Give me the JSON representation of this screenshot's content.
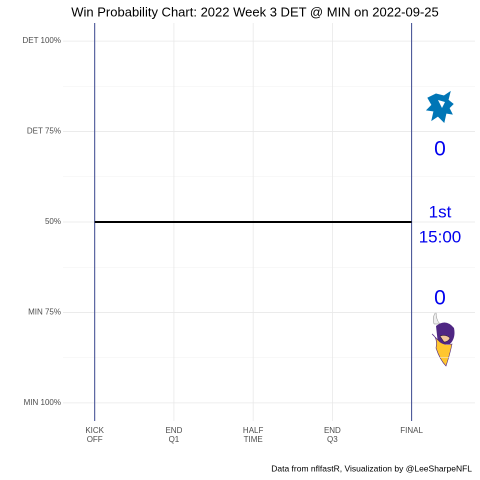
{
  "chart_data": {
    "type": "line",
    "title": "Win Probability Chart: 2022 Week 3 DET @ MIN on 2022-09-25",
    "caption": "Data from nflfastR, Visualization by @LeeSharpeNFL",
    "x": [
      0,
      3600
    ],
    "series": [
      {
        "name": "DET win probability",
        "color": "#000000",
        "values": [
          0.5,
          0.5
        ]
      }
    ],
    "xlim": [
      -360,
      4320
    ],
    "ylim": [
      -0.05,
      1.05
    ],
    "xticks": [
      {
        "value": 0,
        "label": "KICK\nOFF"
      },
      {
        "value": 900,
        "label": "END\nQ1"
      },
      {
        "value": 1800,
        "label": "HALF\nTIME"
      },
      {
        "value": 2700,
        "label": "END\nQ3"
      },
      {
        "value": 3600,
        "label": "FINAL"
      }
    ],
    "yticks": [
      {
        "value": 1,
        "label": "DET 100%"
      },
      {
        "value": 0.75,
        "label": "DET 75%"
      },
      {
        "value": 0.5,
        "label": "50%"
      },
      {
        "value": 0.25,
        "label": "MIN 75%"
      },
      {
        "value": 0,
        "label": "MIN 100%"
      }
    ],
    "yminorticks": [
      0.875,
      0.625,
      0.375,
      0.125
    ],
    "vlines": {
      "values": [
        0,
        3600
      ],
      "color": "#3b4890"
    },
    "grid": true,
    "annotations": {
      "away_score": 0,
      "quarter": "1st",
      "clock": "15:00",
      "home_score": 0
    }
  }
}
